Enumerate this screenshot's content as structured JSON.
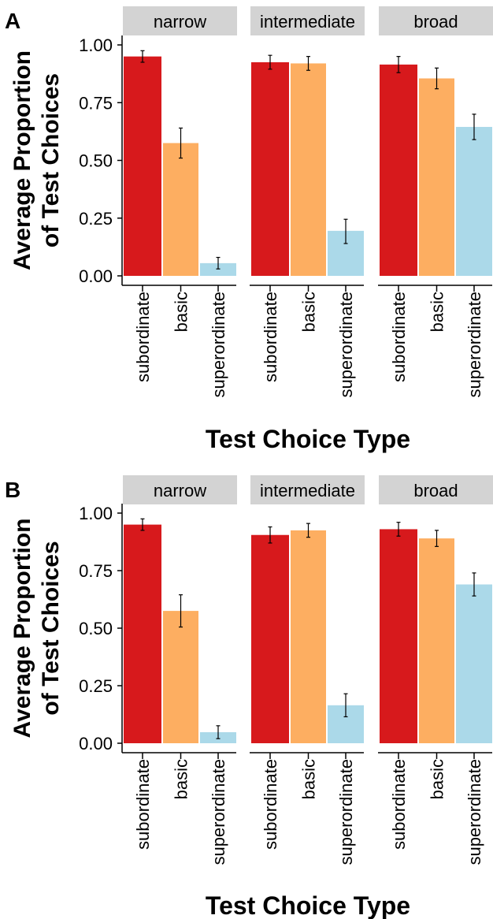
{
  "chart_data": [
    {
      "type": "bar",
      "panel_label": "A",
      "ylabel": [
        "Average Proportion",
        "of Test Choices"
      ],
      "xlabel": "Test Choice Type",
      "ylim": [
        0,
        1
      ],
      "yticks": [
        "0.00",
        "0.25",
        "0.50",
        "0.75",
        "1.00"
      ],
      "categories": [
        "subordinate",
        "basic",
        "superordinate"
      ],
      "colors": [
        "#d7191c",
        "#fdae61",
        "#abd9e9"
      ],
      "strip_color": "#d3d3d3",
      "grid": false,
      "facets": [
        {
          "name": "narrow",
          "values": [
            0.95,
            0.575,
            0.055
          ],
          "error": [
            [
              0.925,
              0.975
            ],
            [
              0.51,
              0.64
            ],
            [
              0.03,
              0.08
            ]
          ]
        },
        {
          "name": "intermediate",
          "values": [
            0.925,
            0.92,
            0.195
          ],
          "error": [
            [
              0.895,
              0.955
            ],
            [
              0.89,
              0.95
            ],
            [
              0.14,
              0.245
            ]
          ]
        },
        {
          "name": "broad",
          "values": [
            0.915,
            0.855,
            0.645
          ],
          "error": [
            [
              0.88,
              0.95
            ],
            [
              0.81,
              0.9
            ],
            [
              0.59,
              0.7
            ]
          ]
        }
      ]
    },
    {
      "type": "bar",
      "panel_label": "B",
      "ylabel": [
        "Average Proportion",
        "of Test Choices"
      ],
      "xlabel": "Test Choice Type",
      "ylim": [
        0,
        1
      ],
      "yticks": [
        "0.00",
        "0.25",
        "0.50",
        "0.75",
        "1.00"
      ],
      "categories": [
        "subordinate",
        "basic",
        "superordinate"
      ],
      "colors": [
        "#d7191c",
        "#fdae61",
        "#abd9e9"
      ],
      "strip_color": "#d3d3d3",
      "grid": false,
      "facets": [
        {
          "name": "narrow",
          "values": [
            0.95,
            0.575,
            0.048
          ],
          "error": [
            [
              0.925,
              0.975
            ],
            [
              0.505,
              0.645
            ],
            [
              0.02,
              0.076
            ]
          ]
        },
        {
          "name": "intermediate",
          "values": [
            0.905,
            0.925,
            0.165
          ],
          "error": [
            [
              0.87,
              0.94
            ],
            [
              0.895,
              0.955
            ],
            [
              0.115,
              0.215
            ]
          ]
        },
        {
          "name": "broad",
          "values": [
            0.93,
            0.89,
            0.69
          ],
          "error": [
            [
              0.9,
              0.96
            ],
            [
              0.855,
              0.925
            ],
            [
              0.64,
              0.74
            ]
          ]
        }
      ]
    }
  ]
}
